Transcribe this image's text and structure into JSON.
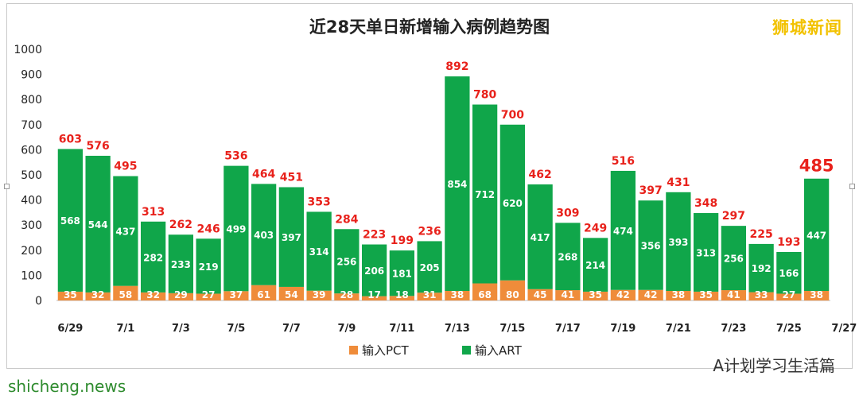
{
  "brand": "狮城新闻",
  "footer_left": "shicheng.news",
  "footer_right": "A计划学习生活篇",
  "colors": {
    "pct": "#ef8c3a",
    "art": "#10a64a",
    "total_label": "#e8211b"
  },
  "chart_data": {
    "type": "bar",
    "stacked": true,
    "title": "近28天单日新增输入病例趋势图",
    "ylim": [
      0,
      1000
    ],
    "yticks": [
      0,
      100,
      200,
      300,
      400,
      500,
      600,
      700,
      800,
      900,
      1000
    ],
    "xtick_labels": [
      "6/29",
      "7/1",
      "7/3",
      "7/5",
      "7/7",
      "7/9",
      "7/11",
      "7/13",
      "7/15",
      "7/17",
      "7/19",
      "7/21",
      "7/23",
      "7/25",
      "7/27"
    ],
    "legend_position": "bottom",
    "series": [
      {
        "name": "输入PCT",
        "values": [
          35,
          32,
          58,
          32,
          29,
          27,
          37,
          61,
          54,
          39,
          28,
          17,
          18,
          31,
          38,
          68,
          80,
          45,
          41,
          35,
          42,
          42,
          38,
          35,
          41,
          33,
          27,
          38
        ]
      },
      {
        "name": "输入ART",
        "values": [
          568,
          544,
          437,
          282,
          233,
          219,
          499,
          403,
          397,
          314,
          256,
          206,
          181,
          205,
          854,
          712,
          620,
          417,
          268,
          214,
          474,
          356,
          393,
          313,
          256,
          192,
          166,
          447
        ]
      }
    ],
    "totals": [
      603,
      576,
      495,
      313,
      262,
      246,
      536,
      464,
      451,
      353,
      284,
      223,
      199,
      236,
      892,
      780,
      700,
      462,
      309,
      249,
      516,
      397,
      431,
      348,
      297,
      225,
      193,
      485
    ]
  }
}
